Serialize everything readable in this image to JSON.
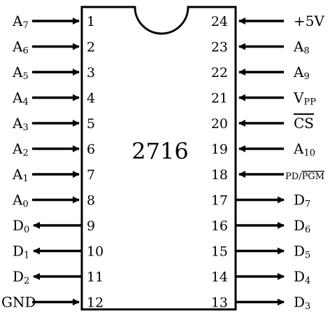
{
  "chip": {
    "part": "2716",
    "pin_count": 24
  },
  "left_pins": [
    {
      "pin": "1",
      "name": "A",
      "sub": "7",
      "dir": "in"
    },
    {
      "pin": "2",
      "name": "A",
      "sub": "6",
      "dir": "in"
    },
    {
      "pin": "3",
      "name": "A",
      "sub": "5",
      "dir": "in"
    },
    {
      "pin": "4",
      "name": "A",
      "sub": "4",
      "dir": "in"
    },
    {
      "pin": "5",
      "name": "A",
      "sub": "3",
      "dir": "in"
    },
    {
      "pin": "6",
      "name": "A",
      "sub": "2",
      "dir": "in"
    },
    {
      "pin": "7",
      "name": "A",
      "sub": "1",
      "dir": "in"
    },
    {
      "pin": "8",
      "name": "A",
      "sub": "0",
      "dir": "in"
    },
    {
      "pin": "9",
      "name": "D",
      "sub": "0",
      "dir": "out"
    },
    {
      "pin": "10",
      "name": "D",
      "sub": "1",
      "dir": "out"
    },
    {
      "pin": "11",
      "name": "D",
      "sub": "2",
      "dir": "out"
    },
    {
      "pin": "12",
      "name": "GND",
      "sub": "",
      "dir": "in"
    }
  ],
  "right_pins": [
    {
      "pin": "24",
      "name": "+5V",
      "sub": "",
      "dir": "in"
    },
    {
      "pin": "23",
      "name": "A",
      "sub": "8",
      "dir": "in"
    },
    {
      "pin": "22",
      "name": "A",
      "sub": "9",
      "dir": "in"
    },
    {
      "pin": "21",
      "name": "V",
      "sub": "PP",
      "dir": "in"
    },
    {
      "pin": "20",
      "name": "CS",
      "sub": "",
      "dir": "in",
      "overline": true
    },
    {
      "pin": "19",
      "name": "A",
      "sub": "10",
      "dir": "in"
    },
    {
      "pin": "18",
      "name": "PD/",
      "sub": "",
      "dir": "in",
      "extra": "PGM"
    },
    {
      "pin": "17",
      "name": "D",
      "sub": "7",
      "dir": "out"
    },
    {
      "pin": "16",
      "name": "D",
      "sub": "6",
      "dir": "out"
    },
    {
      "pin": "15",
      "name": "D",
      "sub": "5",
      "dir": "out"
    },
    {
      "pin": "14",
      "name": "D",
      "sub": "4",
      "dir": "out"
    },
    {
      "pin": "13",
      "name": "D",
      "sub": "3",
      "dir": "out"
    }
  ]
}
